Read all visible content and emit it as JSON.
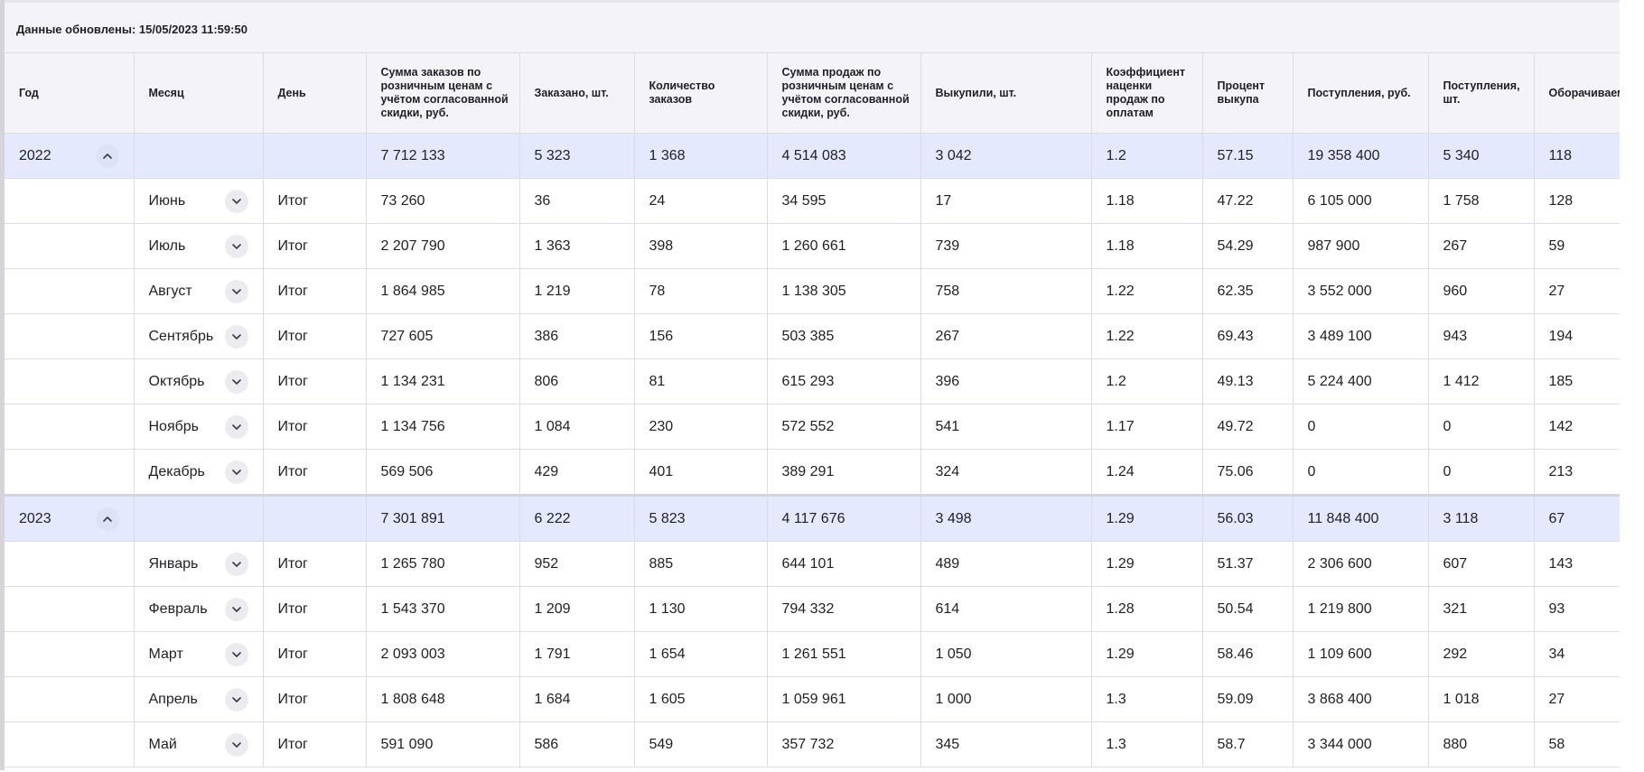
{
  "header": {
    "updated_text": "Данные обновлены: 15/05/2023 11:59:50"
  },
  "columns": [
    "Год",
    "Месяц",
    "День",
    "Сумма заказов по розничным ценам с учётом согласованной скидки, руб.",
    "Заказано, шт.",
    "Количество заказов",
    "Сумма продаж по розничным ценам с учётом согласованной скидки, руб.",
    "Выкупили, шт.",
    "Коэффициент наценки продаж по оплатам",
    "Процент выкупа",
    "Поступления, руб.",
    "Поступления, шт.",
    "Оборачиваемость, дней"
  ],
  "groups": [
    {
      "year": "2022",
      "expanded_icon": "chevron-up-icon",
      "totals": [
        "7 712 133",
        "5 323",
        "1 368",
        "4 514 083",
        "3 042",
        "1.2",
        "57.15",
        "19 358 400",
        "5 340",
        "118"
      ],
      "months": [
        {
          "month": "Июнь",
          "day": "Итог",
          "values": [
            "73 260",
            "36",
            "24",
            "34 595",
            "17",
            "1.18",
            "47.22",
            "6 105 000",
            "1 758",
            "128"
          ]
        },
        {
          "month": "Июль",
          "day": "Итог",
          "values": [
            "2 207 790",
            "1 363",
            "398",
            "1 260 661",
            "739",
            "1.18",
            "54.29",
            "987 900",
            "267",
            "59"
          ]
        },
        {
          "month": "Август",
          "day": "Итог",
          "values": [
            "1 864 985",
            "1 219",
            "78",
            "1 138 305",
            "758",
            "1.22",
            "62.35",
            "3 552 000",
            "960",
            "27"
          ]
        },
        {
          "month": "Сентябрь",
          "day": "Итог",
          "values": [
            "727 605",
            "386",
            "156",
            "503 385",
            "267",
            "1.22",
            "69.43",
            "3 489 100",
            "943",
            "194"
          ]
        },
        {
          "month": "Октябрь",
          "day": "Итог",
          "values": [
            "1 134 231",
            "806",
            "81",
            "615 293",
            "396",
            "1.2",
            "49.13",
            "5 224 400",
            "1 412",
            "185"
          ]
        },
        {
          "month": "Ноябрь",
          "day": "Итог",
          "values": [
            "1 134 756",
            "1 084",
            "230",
            "572 552",
            "541",
            "1.17",
            "49.72",
            "0",
            "0",
            "142"
          ]
        },
        {
          "month": "Декабрь",
          "day": "Итог",
          "values": [
            "569 506",
            "429",
            "401",
            "389 291",
            "324",
            "1.24",
            "75.06",
            "0",
            "0",
            "213"
          ]
        }
      ]
    },
    {
      "year": "2023",
      "expanded_icon": "chevron-up-icon",
      "totals": [
        "7 301 891",
        "6 222",
        "5 823",
        "4 117 676",
        "3 498",
        "1.29",
        "56.03",
        "11 848 400",
        "3 118",
        "67"
      ],
      "months": [
        {
          "month": "Январь",
          "day": "Итог",
          "values": [
            "1 265 780",
            "952",
            "885",
            "644 101",
            "489",
            "1.29",
            "51.37",
            "2 306 600",
            "607",
            "143"
          ]
        },
        {
          "month": "Февраль",
          "day": "Итог",
          "values": [
            "1 543 370",
            "1 209",
            "1 130",
            "794 332",
            "614",
            "1.28",
            "50.54",
            "1 219 800",
            "321",
            "93"
          ]
        },
        {
          "month": "Март",
          "day": "Итог",
          "values": [
            "2 093 003",
            "1 791",
            "1 654",
            "1 261 551",
            "1 050",
            "1.29",
            "58.46",
            "1 109 600",
            "292",
            "34"
          ]
        },
        {
          "month": "Апрель",
          "day": "Итог",
          "values": [
            "1 808 648",
            "1 684",
            "1 605",
            "1 059 961",
            "1 000",
            "1.3",
            "59.09",
            "3 868 400",
            "1 018",
            "27"
          ]
        },
        {
          "month": "Май",
          "day": "Итог",
          "values": [
            "591 090",
            "586",
            "549",
            "357 732",
            "345",
            "1.3",
            "58.7",
            "3 344 000",
            "880",
            "58"
          ]
        }
      ]
    }
  ],
  "colors": {
    "year_row_bg": "#e4e9fd",
    "header_bg": "#f4f4f8",
    "grid_line": "#dcdce2"
  }
}
